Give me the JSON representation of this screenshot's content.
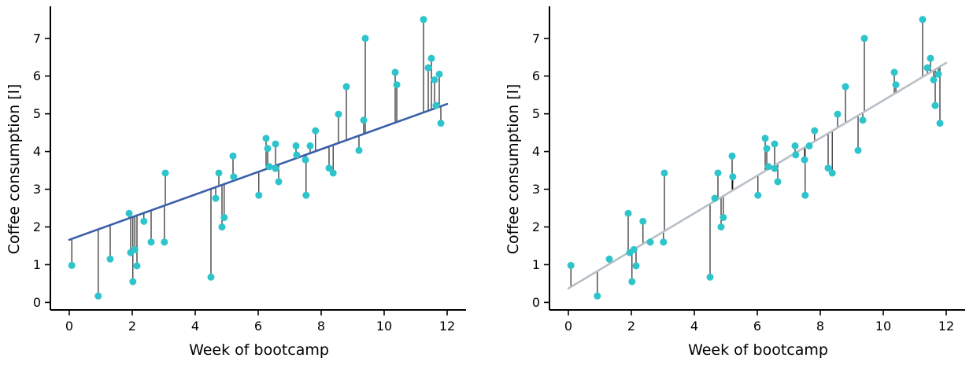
{
  "colors": {
    "points": "#2ec4cc",
    "residual_lines": "#111111",
    "fit_left": "#3a5fa8",
    "fit_right": "#b8bfc7",
    "axes": "#000000"
  },
  "chart_data": [
    {
      "type": "scatter",
      "panel": "left",
      "xlabel": "Week of bootcamp",
      "ylabel": "Coffee consumption [l]",
      "xlim": [
        -0.6,
        12.6
      ],
      "ylim": [
        -0.2,
        7.85
      ],
      "xticks": [
        0,
        2,
        4,
        6,
        8,
        10,
        12
      ],
      "yticks": [
        0,
        1,
        2,
        3,
        4,
        5,
        6,
        7
      ],
      "grid": false,
      "fit_line": {
        "x": [
          0,
          12
        ],
        "y": [
          1.66,
          5.26
        ],
        "color": "#3a5fa8"
      },
      "residuals": true
    },
    {
      "type": "scatter",
      "panel": "right",
      "xlabel": "Week of bootcamp",
      "ylabel": "Coffee consumption [l]",
      "xlim": [
        -0.6,
        12.6
      ],
      "ylim": [
        -0.2,
        7.85
      ],
      "xticks": [
        0,
        2,
        4,
        6,
        8,
        10,
        12
      ],
      "yticks": [
        0,
        1,
        2,
        3,
        4,
        5,
        6,
        7
      ],
      "grid": false,
      "fit_line": {
        "x": [
          0,
          12
        ],
        "y": [
          0.37,
          6.35
        ],
        "color": "#b8bfc7"
      },
      "residuals": true
    }
  ],
  "points": [
    [
      0.08,
      0.98
    ],
    [
      0.92,
      0.17
    ],
    [
      1.3,
      1.15
    ],
    [
      1.9,
      2.36
    ],
    [
      1.95,
      1.32
    ],
    [
      2.02,
      0.55
    ],
    [
      2.08,
      1.4
    ],
    [
      2.15,
      0.97
    ],
    [
      2.37,
      2.15
    ],
    [
      2.6,
      1.6
    ],
    [
      3.02,
      1.6
    ],
    [
      3.05,
      3.43
    ],
    [
      4.5,
      0.67
    ],
    [
      4.65,
      2.76
    ],
    [
      4.75,
      3.43
    ],
    [
      4.85,
      2.0
    ],
    [
      4.92,
      2.25
    ],
    [
      5.2,
      3.88
    ],
    [
      5.22,
      3.33
    ],
    [
      6.02,
      2.84
    ],
    [
      6.25,
      4.35
    ],
    [
      6.3,
      4.08
    ],
    [
      6.35,
      3.6
    ],
    [
      6.55,
      3.55
    ],
    [
      6.55,
      4.2
    ],
    [
      6.65,
      3.2
    ],
    [
      7.2,
      4.15
    ],
    [
      7.22,
      3.91
    ],
    [
      7.5,
      3.78
    ],
    [
      7.52,
      2.84
    ],
    [
      7.65,
      4.15
    ],
    [
      7.82,
      4.55
    ],
    [
      8.25,
      3.56
    ],
    [
      8.38,
      3.43
    ],
    [
      8.55,
      4.99
    ],
    [
      8.8,
      5.72
    ],
    [
      9.2,
      4.03
    ],
    [
      9.35,
      4.83
    ],
    [
      9.4,
      7.0
    ],
    [
      10.35,
      6.1
    ],
    [
      10.4,
      5.77
    ],
    [
      11.25,
      7.5
    ],
    [
      11.4,
      6.22
    ],
    [
      11.5,
      6.47
    ],
    [
      11.6,
      5.9
    ],
    [
      11.65,
      5.22
    ],
    [
      11.75,
      6.05
    ],
    [
      11.8,
      4.75
    ]
  ]
}
